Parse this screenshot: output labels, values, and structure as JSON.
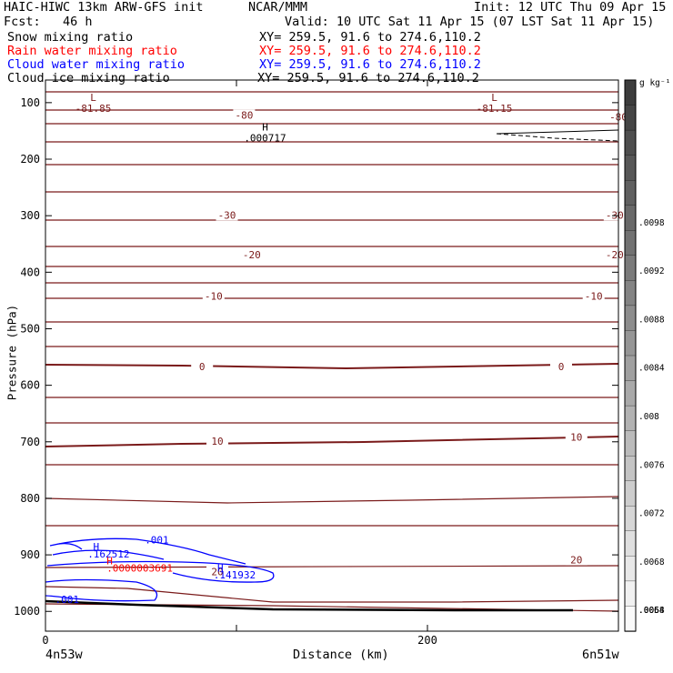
{
  "header": {
    "title": "HAIC-HIWC 13km ARW-GFS init",
    "org": "NCAR/MMM",
    "init": "Init: 12 UTC Thu 09 Apr 15",
    "fcst": "Fcst:   46 h",
    "valid": "Valid: 10 UTC Sat 11 Apr 15 (07 LST Sat 11 Apr 15)"
  },
  "fields": [
    {
      "name": "Snow mixing ratio",
      "xy": "XY= 259.5, 91.6 to 274.6,110.2",
      "color": "#000000"
    },
    {
      "name": "Rain water mixing ratio",
      "xy": "XY= 259.5, 91.6 to 274.6,110.2",
      "color": "#ff0000"
    },
    {
      "name": "Cloud water mixing ratio",
      "xy": "XY= 259.5, 91.6 to 274.6,110.2",
      "color": "#0000ff"
    },
    {
      "name": "Cloud ice mixing ratio",
      "xy": "XY= 259.5, 91.6 to 274.6,110.2",
      "color": "#000000"
    }
  ],
  "chart_data": {
    "type": "contour",
    "xlabel": "Distance (km)",
    "ylabel": "Pressure (hPa)",
    "x_ticks": [
      0,
      100,
      200,
      300
    ],
    "x_tick_labels": [
      "0",
      "",
      "200",
      ""
    ],
    "x_range": [
      0,
      300
    ],
    "y_ticks": [
      100,
      200,
      300,
      400,
      500,
      600,
      700,
      800,
      900,
      1000
    ],
    "y_range": [
      60,
      1035
    ],
    "left_endpoint": "4n53w",
    "right_endpoint": "6n51w",
    "colorbar": {
      "unit": "g kg⁻¹",
      "labels": [
        ".0098",
        ".0092",
        ".0088",
        ".0084",
        ".008",
        ".0076",
        ".0072",
        ".0068",
        ".0064",
        ".006",
        ".0058"
      ]
    },
    "temperature_contours": {
      "color": "#7a1a1a",
      "labeled": [
        {
          "label": "-80",
          "x": 104,
          "p": 125
        },
        {
          "label": "-80",
          "x": 300,
          "p": 128
        },
        {
          "label": "-30",
          "x": 95,
          "p": 302
        },
        {
          "label": "-30",
          "x": 298,
          "p": 302
        },
        {
          "label": "-20",
          "x": 108,
          "p": 372
        },
        {
          "label": "-20",
          "x": 298,
          "p": 372
        },
        {
          "label": "-10",
          "x": 88,
          "p": 445
        },
        {
          "label": "-10",
          "x": 287,
          "p": 445
        },
        {
          "label": "0",
          "x": 82,
          "p": 570
        },
        {
          "label": "0",
          "x": 270,
          "p": 570
        },
        {
          "label": "10",
          "x": 90,
          "p": 702
        },
        {
          "label": "10",
          "x": 278,
          "p": 695
        },
        {
          "label": "20",
          "x": 90,
          "p": 933
        },
        {
          "label": "20",
          "x": 278,
          "p": 912
        }
      ]
    },
    "extrema": [
      {
        "type": "L",
        "value": "-81.85",
        "x": 25,
        "p": 110
      },
      {
        "type": "L",
        "value": "-81.15",
        "x": 235,
        "p": 110
      },
      {
        "type": "H",
        "value": ".000717",
        "x": 115,
        "p": 162
      }
    ],
    "cloud_water": {
      "color": "#0000ff",
      "labels": [
        {
          "text": ".001",
          "x": 52,
          "p": 880
        },
        {
          "text": "H",
          "x": 25,
          "p": 892
        },
        {
          "text": ".162512",
          "x": 22,
          "p": 905
        },
        {
          "text": "H",
          "x": 90,
          "p": 930
        },
        {
          "text": ".141932",
          "x": 88,
          "p": 942
        },
        {
          "text": ".001",
          "x": 5,
          "p": 985
        }
      ]
    },
    "rain_water": {
      "color": "#ff0000",
      "labels": [
        {
          "text": "H",
          "x": 32,
          "p": 917
        },
        {
          "text": ".0000003691",
          "x": 32,
          "p": 930
        }
      ]
    }
  }
}
